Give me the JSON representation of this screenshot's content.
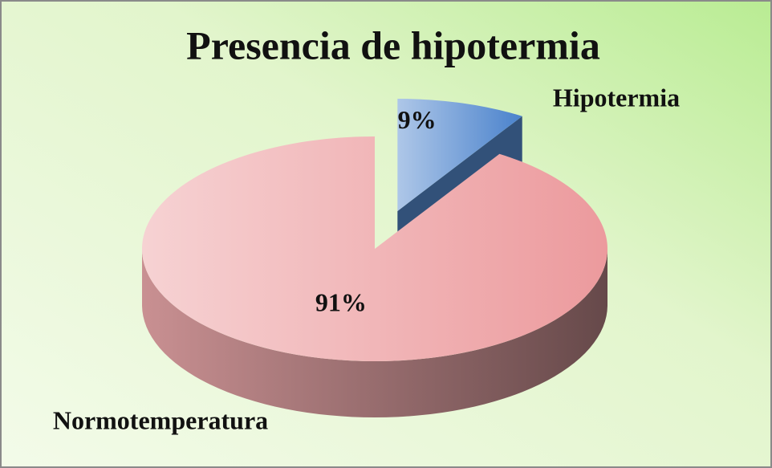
{
  "chart_data": {
    "type": "pie",
    "title": "Presencia de hipotermia",
    "categories": [
      "Hipotermia",
      "Normotemperatura"
    ],
    "values": [
      9,
      91
    ],
    "value_labels": [
      "9%",
      "91%"
    ],
    "colors": [
      "#4a82cc",
      "#ec9a9d"
    ],
    "explode": [
      0.35,
      0
    ]
  }
}
